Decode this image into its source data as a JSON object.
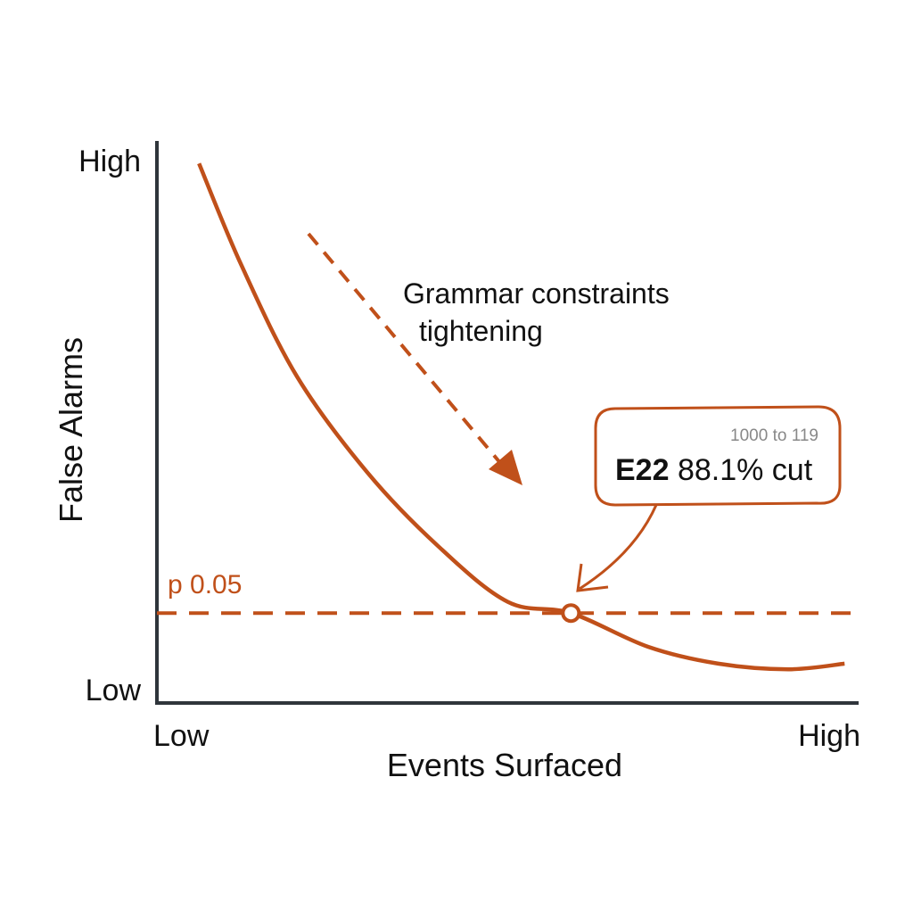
{
  "colors": {
    "accent": "#c0501a",
    "axis": "#2f353b",
    "text": "#111111",
    "muted": "#888888"
  },
  "chart_data": {
    "type": "line",
    "xlabel": "Events Surfaced",
    "ylabel": "False Alarms",
    "x_tick_labels": [
      "Low",
      "High"
    ],
    "y_tick_labels": [
      "Low",
      "High"
    ],
    "xlim": [
      0,
      1
    ],
    "ylim": [
      0,
      1
    ],
    "grid": false,
    "series": [
      {
        "x": [
          0.06,
          0.12,
          0.2,
          0.3,
          0.4,
          0.5,
          0.59,
          0.7,
          0.8,
          0.9,
          0.98
        ],
        "y": [
          0.96,
          0.78,
          0.58,
          0.41,
          0.28,
          0.18,
          0.16,
          0.1,
          0.07,
          0.06,
          0.07
        ]
      }
    ],
    "threshold": {
      "label": "p 0.05",
      "y": 0.16
    },
    "annotations": {
      "arrow_label_line1": "Grammar constraints",
      "arrow_label_line2": "tightening",
      "callout_range": "1000 to 119",
      "callout_id": "E22",
      "callout_value": "88.1% cut",
      "marker": {
        "x": 0.59,
        "y": 0.16
      }
    }
  }
}
